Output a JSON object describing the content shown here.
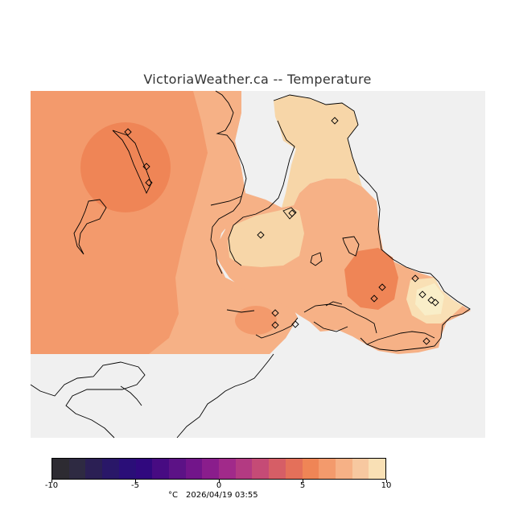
{
  "title": "VictoriaWeather.ca -- Temperature",
  "colorbar": {
    "tick_labels": [
      "-10",
      "-5",
      "0",
      "5",
      "10"
    ],
    "tick_values": [
      -10,
      -5,
      0,
      5,
      10
    ],
    "min": -10,
    "max": 10,
    "bin_colors": [
      "#2d2b32",
      "#2e2a42",
      "#2b1f54",
      "#291768",
      "#2a0e78",
      "#30087e",
      "#470b82",
      "#5c1286",
      "#72158a",
      "#8a1d8c",
      "#a12a8a",
      "#b33a82",
      "#c54b76",
      "#d65e66",
      "#e4705a",
      "#ef8556",
      "#f39a6c",
      "#f6b186",
      "#f7c8a0",
      "#f9e0b5"
    ]
  },
  "footer": {
    "unit": "°C",
    "timestamp": "2026/04/19 03:55"
  },
  "map": {
    "background_color": "#f0f0f0",
    "coast_color": "#000000",
    "station_marker": "diamond-icon"
  }
}
